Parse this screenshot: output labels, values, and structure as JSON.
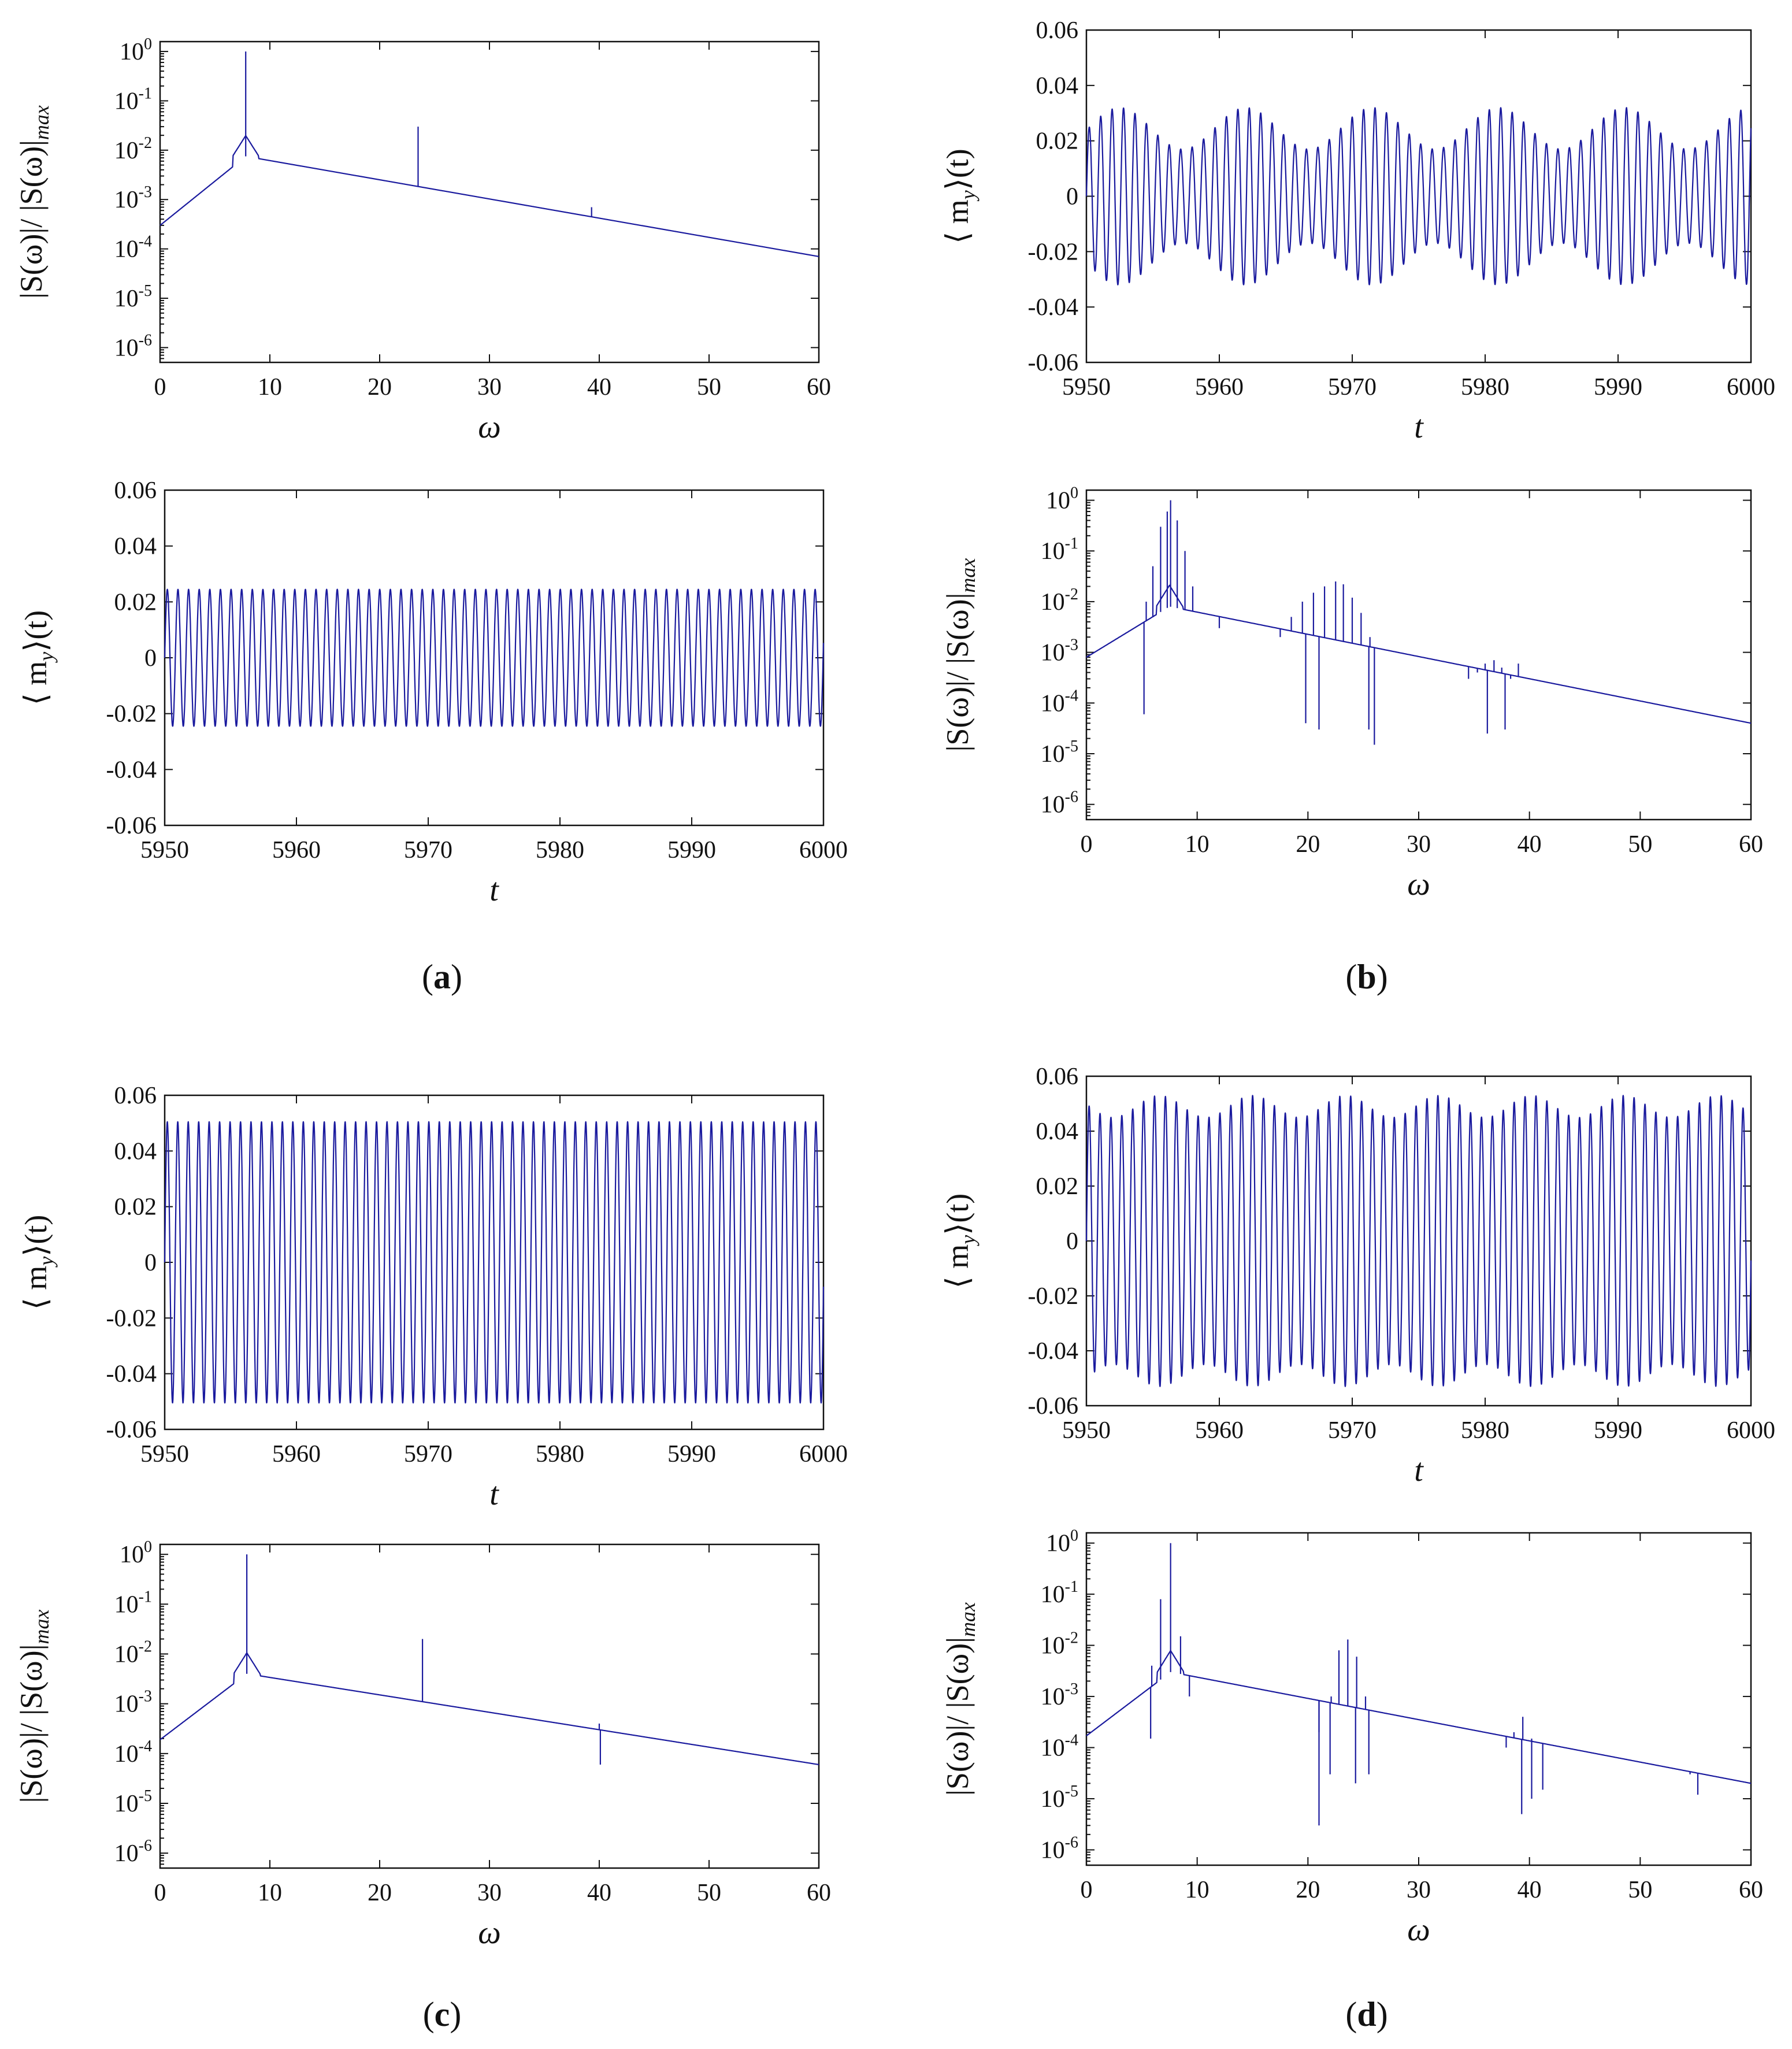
{
  "panel_labels": [
    {
      "open": "(",
      "letter": "a",
      "close": ")"
    },
    {
      "open": "(",
      "letter": "b",
      "close": ")"
    },
    {
      "open": "(",
      "letter": "c",
      "close": ")"
    },
    {
      "open": "(",
      "letter": "d",
      "close": ")"
    }
  ],
  "colors": {
    "line": "#1a1a9e",
    "axis": "#111111"
  },
  "chart_data": [
    {
      "id": "a-spectrum",
      "panel": "a",
      "type": "line",
      "scale": "log",
      "title": "",
      "xlabel": "ω",
      "ylabel": {
        "main": "|S(ω)|/ |S(ω)|",
        "sub": "max"
      },
      "xlim": [
        0,
        60
      ],
      "ylim_exp": [
        -6.3,
        0.2
      ],
      "xticks": [
        "0",
        "10",
        "20",
        "30",
        "40",
        "50",
        "60"
      ],
      "yticks": [
        {
          "base": "10",
          "exp": "0"
        },
        {
          "base": "10",
          "exp": "-1"
        },
        {
          "base": "10",
          "exp": "-2"
        },
        {
          "base": "10",
          "exp": "-3"
        },
        {
          "base": "10",
          "exp": "-4"
        },
        {
          "base": "10",
          "exp": "-5"
        },
        {
          "base": "10",
          "exp": "-6"
        }
      ],
      "baseline": {
        "x": [
          0,
          7.8,
          60
        ],
        "y": [
          0.0003,
          0.0075,
          7e-05
        ]
      },
      "peaks": [
        {
          "x": 7.8,
          "y": 1.0
        },
        {
          "x": 23.5,
          "y": 0.03
        },
        {
          "x": 39.3,
          "y": 0.0007
        }
      ],
      "dips": []
    },
    {
      "id": "a-time",
      "panel": "a",
      "type": "line",
      "scale": "linear",
      "title": "",
      "xlabel": "t",
      "ylabel": {
        "main": "⟨ m",
        "sub": "y",
        "end": "⟩(t)"
      },
      "xlim": [
        5950,
        6000
      ],
      "ylim": [
        -0.06,
        0.06
      ],
      "xticks": [
        "5950",
        "5960",
        "5970",
        "5980",
        "5990",
        "6000"
      ],
      "yticks": [
        "0.06",
        "0.04",
        "0.02",
        "0",
        "-0.02",
        "-0.04",
        "-0.06"
      ],
      "signal": {
        "period": 0.806,
        "amplitude": 0.0245,
        "mod_depth": 0.0,
        "mod_period": 10.0,
        "mod_phase": 0.0
      }
    },
    {
      "id": "b-time",
      "panel": "b",
      "type": "line",
      "scale": "linear",
      "title": "",
      "xlabel": "t",
      "ylabel": {
        "main": "⟨ m",
        "sub": "y",
        "end": "⟩(t)"
      },
      "xlim": [
        5950,
        6000
      ],
      "ylim": [
        -0.06,
        0.06
      ],
      "xticks": [
        "5950",
        "5960",
        "5970",
        "5980",
        "5990",
        "6000"
      ],
      "yticks": [
        "0.06",
        "0.04",
        "0.02",
        "0",
        "-0.02",
        "-0.04",
        "-0.06"
      ],
      "signal": {
        "period": 0.86,
        "amplitude": 0.0245,
        "mod_depth": 0.0075,
        "mod_period": 9.5,
        "mod_phase": 5952.5
      }
    },
    {
      "id": "b-spectrum",
      "panel": "b",
      "type": "line",
      "scale": "log",
      "title": "",
      "xlabel": "ω",
      "ylabel": {
        "main": "|S(ω)|/ |S(ω)|",
        "sub": "max"
      },
      "xlim": [
        0,
        60
      ],
      "ylim_exp": [
        -6.3,
        0.2
      ],
      "xticks": [
        "0",
        "10",
        "20",
        "30",
        "40",
        "50",
        "60"
      ],
      "yticks": [
        {
          "base": "10",
          "exp": "0"
        },
        {
          "base": "10",
          "exp": "-1"
        },
        {
          "base": "10",
          "exp": "-2"
        },
        {
          "base": "10",
          "exp": "-3"
        },
        {
          "base": "10",
          "exp": "-4"
        },
        {
          "base": "10",
          "exp": "-5"
        },
        {
          "base": "10",
          "exp": "-6"
        }
      ],
      "baseline": {
        "x": [
          0,
          7.5,
          60
        ],
        "y": [
          0.0008,
          0.008,
          4e-05
        ]
      },
      "peaks": [
        {
          "x": 5.4,
          "y": 0.01
        },
        {
          "x": 6.0,
          "y": 0.05
        },
        {
          "x": 6.7,
          "y": 0.3
        },
        {
          "x": 7.3,
          "y": 0.6
        },
        {
          "x": 7.6,
          "y": 1.0
        },
        {
          "x": 8.2,
          "y": 0.4
        },
        {
          "x": 8.9,
          "y": 0.1
        },
        {
          "x": 9.6,
          "y": 0.02
        },
        {
          "x": 10.2,
          "y": 0.006
        },
        {
          "x": 12.0,
          "y": 0.003
        },
        {
          "x": 17.5,
          "y": 0.002
        },
        {
          "x": 18.5,
          "y": 0.005
        },
        {
          "x": 19.5,
          "y": 0.01
        },
        {
          "x": 20.5,
          "y": 0.015
        },
        {
          "x": 21.5,
          "y": 0.02
        },
        {
          "x": 22.5,
          "y": 0.025
        },
        {
          "x": 23.2,
          "y": 0.022
        },
        {
          "x": 24.0,
          "y": 0.012
        },
        {
          "x": 24.8,
          "y": 0.006
        },
        {
          "x": 25.6,
          "y": 0.002
        },
        {
          "x": 34.5,
          "y": 0.0003
        },
        {
          "x": 35.3,
          "y": 0.0004
        },
        {
          "x": 36.0,
          "y": 0.0006
        },
        {
          "x": 36.8,
          "y": 0.0007
        },
        {
          "x": 37.5,
          "y": 0.0005
        },
        {
          "x": 38.3,
          "y": 0.0003
        },
        {
          "x": 39.0,
          "y": 0.0006
        },
        {
          "x": 40.0,
          "y": 0.0003
        }
      ],
      "dips": [
        {
          "x": 5.2,
          "y": 6e-05
        },
        {
          "x": 19.8,
          "y": 4e-05
        },
        {
          "x": 21.0,
          "y": 3e-05
        },
        {
          "x": 25.5,
          "y": 3e-05
        },
        {
          "x": 26.0,
          "y": 1.5e-05
        },
        {
          "x": 36.2,
          "y": 2.5e-05
        },
        {
          "x": 37.8,
          "y": 3e-05
        }
      ]
    },
    {
      "id": "c-time",
      "panel": "c",
      "type": "line",
      "scale": "linear",
      "title": "",
      "xlabel": "t",
      "ylabel": {
        "main": "⟨ m",
        "sub": "y",
        "end": "⟩(t)"
      },
      "xlim": [
        5950,
        6000
      ],
      "ylim": [
        -0.06,
        0.06
      ],
      "xticks": [
        "5950",
        "5960",
        "5970",
        "5980",
        "5990",
        "6000"
      ],
      "yticks": [
        "0.06",
        "0.04",
        "0.02",
        "0",
        "-0.02",
        "-0.04",
        "-0.06"
      ],
      "signal": {
        "period": 0.794,
        "amplitude": 0.0505,
        "mod_depth": 0.0,
        "mod_period": 10.0,
        "mod_phase": 0.0
      }
    },
    {
      "id": "c-spectrum",
      "panel": "c",
      "type": "line",
      "scale": "log",
      "title": "",
      "xlabel": "ω",
      "ylabel": {
        "main": "|S(ω)|/ |S(ω)|",
        "sub": "max"
      },
      "xlim": [
        0,
        60
      ],
      "ylim_exp": [
        -6.3,
        0.2
      ],
      "xticks": [
        "0",
        "10",
        "20",
        "30",
        "40",
        "50",
        "60"
      ],
      "yticks": [
        {
          "base": "10",
          "exp": "0"
        },
        {
          "base": "10",
          "exp": "-1"
        },
        {
          "base": "10",
          "exp": "-2"
        },
        {
          "base": "10",
          "exp": "-3"
        },
        {
          "base": "10",
          "exp": "-4"
        },
        {
          "base": "10",
          "exp": "-5"
        },
        {
          "base": "10",
          "exp": "-6"
        }
      ],
      "baseline": {
        "x": [
          0,
          7.9,
          60
        ],
        "y": [
          0.00019,
          0.004,
          6e-05
        ]
      },
      "peaks": [
        {
          "x": 7.9,
          "y": 1.0
        },
        {
          "x": 23.9,
          "y": 0.02
        },
        {
          "x": 40.0,
          "y": 0.0004
        }
      ],
      "dips": [
        {
          "x": 40.1,
          "y": 6e-05
        }
      ]
    },
    {
      "id": "d-time",
      "panel": "d",
      "type": "line",
      "scale": "linear",
      "title": "",
      "xlabel": "t",
      "ylabel": {
        "main": "⟨ m",
        "sub": "y",
        "end": "⟩(t)"
      },
      "xlim": [
        5950,
        6000
      ],
      "ylim": [
        -0.06,
        0.06
      ],
      "xticks": [
        "5950",
        "5960",
        "5970",
        "5980",
        "5990",
        "6000"
      ],
      "yticks": [
        "0.06",
        "0.04",
        "0.02",
        "0",
        "-0.02",
        "-0.04",
        "-0.06"
      ],
      "signal": {
        "period": 0.82,
        "amplitude": 0.049,
        "mod_depth": 0.004,
        "mod_period": 7.0,
        "mod_phase": 5955.5
      }
    },
    {
      "id": "d-spectrum",
      "panel": "d",
      "type": "line",
      "scale": "log",
      "title": "",
      "xlabel": "ω",
      "ylabel": {
        "main": "|S(ω)|/ |S(ω)|",
        "sub": "max"
      },
      "xlim": [
        0,
        60
      ],
      "ylim_exp": [
        -6.3,
        0.2
      ],
      "xticks": [
        "0",
        "10",
        "20",
        "30",
        "40",
        "50",
        "60"
      ],
      "yticks": [
        {
          "base": "10",
          "exp": "0"
        },
        {
          "base": "10",
          "exp": "-1"
        },
        {
          "base": "10",
          "exp": "-2"
        },
        {
          "base": "10",
          "exp": "-3"
        },
        {
          "base": "10",
          "exp": "-4"
        },
        {
          "base": "10",
          "exp": "-5"
        },
        {
          "base": "10",
          "exp": "-6"
        }
      ],
      "baseline": {
        "x": [
          0,
          7.6,
          60
        ],
        "y": [
          0.00017,
          0.003,
          2e-05
        ]
      },
      "peaks": [
        {
          "x": 5.9,
          "y": 0.004
        },
        {
          "x": 6.7,
          "y": 0.08
        },
        {
          "x": 7.6,
          "y": 1.0
        },
        {
          "x": 8.5,
          "y": 0.015
        },
        {
          "x": 9.3,
          "y": 0.001
        },
        {
          "x": 21.0,
          "y": 0.0002
        },
        {
          "x": 22.1,
          "y": 0.001
        },
        {
          "x": 22.8,
          "y": 0.008
        },
        {
          "x": 23.6,
          "y": 0.013
        },
        {
          "x": 24.4,
          "y": 0.006
        },
        {
          "x": 25.2,
          "y": 0.001
        },
        {
          "x": 37.9,
          "y": 0.0001
        },
        {
          "x": 38.6,
          "y": 0.0002
        },
        {
          "x": 39.4,
          "y": 0.0004
        },
        {
          "x": 40.2,
          "y": 0.00015
        },
        {
          "x": 54.5,
          "y": 3e-05
        }
      ],
      "dips": [
        {
          "x": 5.8,
          "y": 0.00015
        },
        {
          "x": 21.0,
          "y": 3e-06
        },
        {
          "x": 22.0,
          "y": 3e-05
        },
        {
          "x": 24.3,
          "y": 2e-05
        },
        {
          "x": 25.5,
          "y": 3e-05
        },
        {
          "x": 39.3,
          "y": 5e-06
        },
        {
          "x": 40.2,
          "y": 1e-05
        },
        {
          "x": 41.2,
          "y": 1.5e-05
        },
        {
          "x": 55.2,
          "y": 1.2e-05
        }
      ]
    }
  ]
}
